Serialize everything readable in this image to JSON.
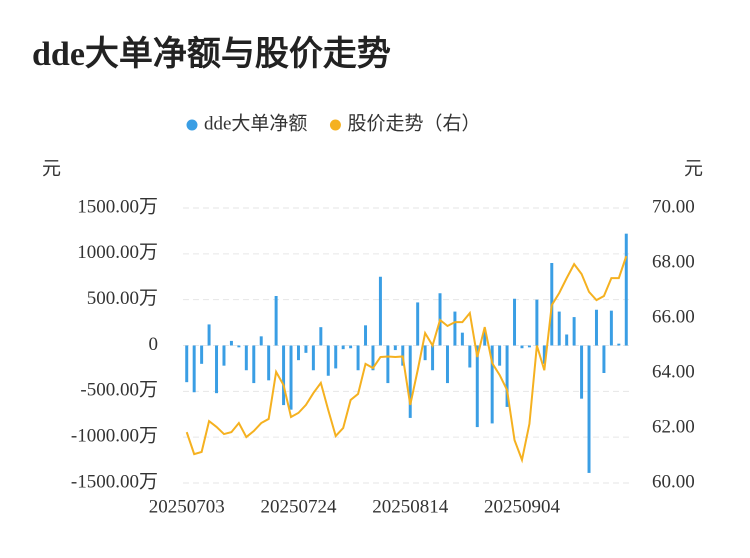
{
  "chart_data": {
    "type": "bar_line",
    "title": "dde大单净额与股价走势",
    "y_label": "元",
    "y2_label": "元",
    "categories": [
      "20250703",
      null,
      null,
      null,
      null,
      null,
      null,
      null,
      null,
      null,
      null,
      null,
      null,
      null,
      null,
      "20250724",
      null,
      null,
      null,
      null,
      null,
      null,
      null,
      null,
      null,
      null,
      null,
      null,
      null,
      null,
      "20250814",
      null,
      null,
      null,
      null,
      null,
      null,
      null,
      null,
      null,
      null,
      null,
      null,
      null,
      null,
      "20250904",
      null,
      null,
      null,
      null,
      null,
      null,
      null,
      null,
      null,
      null,
      null,
      null,
      null,
      null
    ],
    "series": [
      {
        "name": "dde大单净额",
        "type": "bar",
        "color": "#3a9ee4",
        "axis": "y",
        "values": [
          -400,
          -510,
          -200,
          230,
          -520,
          -220,
          50,
          -20,
          -270,
          -410,
          100,
          -380,
          540,
          -650,
          -700,
          -160,
          -80,
          -270,
          200,
          -330,
          -250,
          -40,
          -30,
          -270,
          220,
          -270,
          750,
          -410,
          -50,
          -220,
          -790,
          470,
          -160,
          -270,
          570,
          -410,
          370,
          140,
          -240,
          -890,
          160,
          -850,
          -220,
          -670,
          510,
          -30,
          -20,
          500,
          -200,
          900,
          370,
          120,
          310,
          -580,
          -1390,
          390,
          -300,
          380,
          20,
          1220
        ]
      },
      {
        "name": "股价走势（右）",
        "type": "line",
        "color": "#f5b120",
        "axis": "y2",
        "values": [
          61.85,
          61.05,
          61.13,
          62.25,
          62.04,
          61.78,
          61.85,
          62.18,
          61.67,
          61.89,
          62.18,
          62.33,
          64.04,
          63.56,
          62.4,
          62.55,
          62.84,
          63.27,
          63.64,
          62.65,
          61.71,
          62.0,
          63.02,
          63.24,
          64.33,
          64.18,
          64.58,
          64.6,
          64.58,
          64.6,
          62.84,
          64.1,
          65.45,
          65.0,
          65.93,
          65.71,
          65.85,
          65.85,
          66.18,
          64.58,
          65.67,
          64.36,
          63.93,
          63.38,
          61.56,
          60.84,
          62.15,
          65.0,
          64.1,
          66.47,
          66.91,
          67.45,
          67.96,
          67.6,
          66.95,
          66.65,
          66.8,
          67.45,
          67.45,
          68.25
        ]
      }
    ],
    "ylim": [
      -1500,
      1500
    ],
    "yticks": [
      {
        "value": -1500,
        "label": "-1500.00万"
      },
      {
        "value": -1000,
        "label": "-1000.00万"
      },
      {
        "value": -500,
        "label": "-500.00万"
      },
      0,
      {
        "value": 500,
        "label": "500.00万"
      },
      {
        "value": 1000,
        "label": "1000.00万"
      },
      {
        "value": 1500,
        "label": "1500.00万"
      }
    ],
    "y2lim": [
      60,
      70
    ],
    "y2ticks": [
      {
        "value": 60,
        "label": "60.00"
      },
      {
        "value": 62,
        "label": "62.00"
      },
      {
        "value": 64,
        "label": "64.00"
      },
      {
        "value": 66,
        "label": "66.00"
      },
      {
        "value": 68,
        "label": "68.00"
      },
      {
        "value": 70,
        "label": "70.00"
      }
    ],
    "grid": true,
    "legend": "top"
  }
}
